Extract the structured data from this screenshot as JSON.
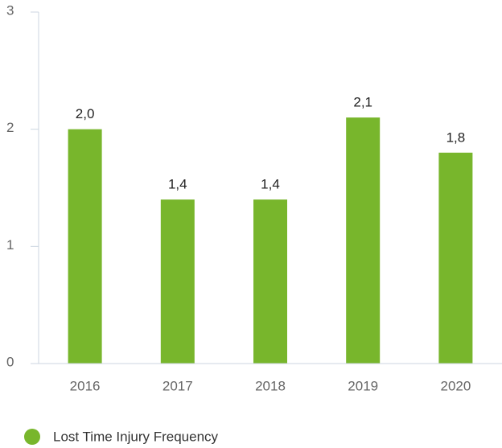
{
  "chart_data": {
    "type": "bar",
    "categories": [
      "2016",
      "2017",
      "2018",
      "2019",
      "2020"
    ],
    "series": [
      {
        "name": "Lost Time Injury Frequency",
        "color": "#78b62c",
        "values": [
          2.0,
          1.4,
          1.4,
          2.1,
          1.8
        ],
        "value_labels": [
          "2,0",
          "1,4",
          "1,4",
          "2,1",
          "1,8"
        ]
      }
    ],
    "ylim": [
      0,
      3
    ],
    "yticks": [
      0,
      1,
      2,
      3
    ],
    "legend": "bottom-left"
  }
}
